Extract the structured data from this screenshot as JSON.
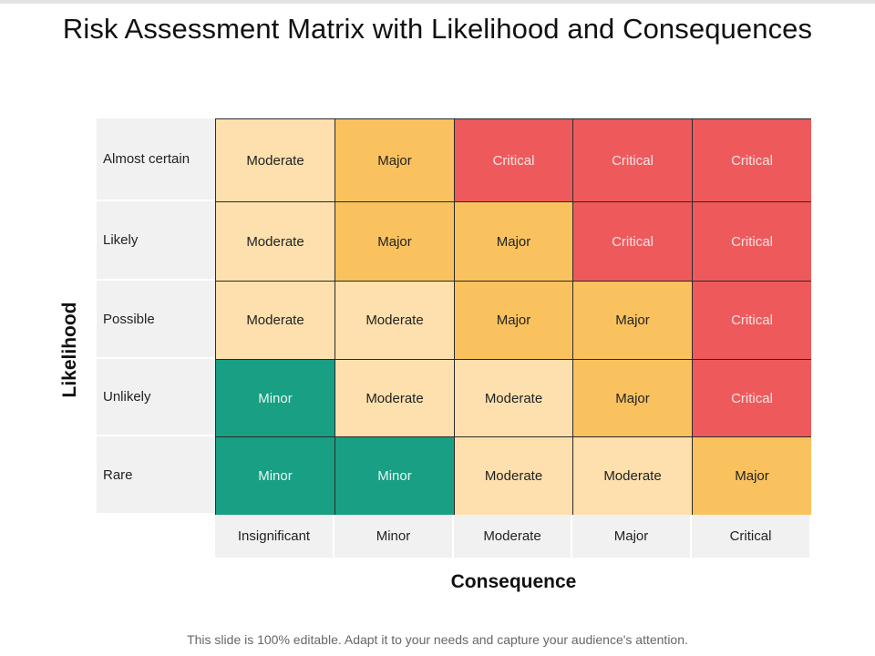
{
  "title": "Risk Assessment Matrix with Likelihood and Consequences",
  "y_axis_label": "Likelihood",
  "x_axis_label": "Consequence",
  "footer": "This slide is 100% editable. Adapt it to your needs and capture your audience's attention.",
  "colors": {
    "minor": "#189f84",
    "moderate": "#fde0ad",
    "major": "#fac25e",
    "critical": "#ee5a5c",
    "label_bg": "#f1f1f1"
  },
  "likelihood_levels": [
    "Almost certain",
    "Likely",
    "Possible",
    "Unlikely",
    "Rare"
  ],
  "consequence_levels": [
    "Insignificant",
    "Minor",
    "Moderate",
    "Major",
    "Critical"
  ],
  "rows": [
    {
      "cells": [
        "Moderate",
        "Major",
        "Critical",
        "Critical",
        "Critical"
      ]
    },
    {
      "cells": [
        "Moderate",
        "Major",
        "Major",
        "Critical",
        "Critical"
      ]
    },
    {
      "cells": [
        "Moderate",
        "Moderate",
        "Major",
        "Major",
        "Critical"
      ]
    },
    {
      "cells": [
        "Minor",
        "Moderate",
        "Moderate",
        "Major",
        "Critical"
      ]
    },
    {
      "cells": [
        "Minor",
        "Minor",
        "Moderate",
        "Moderate",
        "Major"
      ]
    }
  ]
}
